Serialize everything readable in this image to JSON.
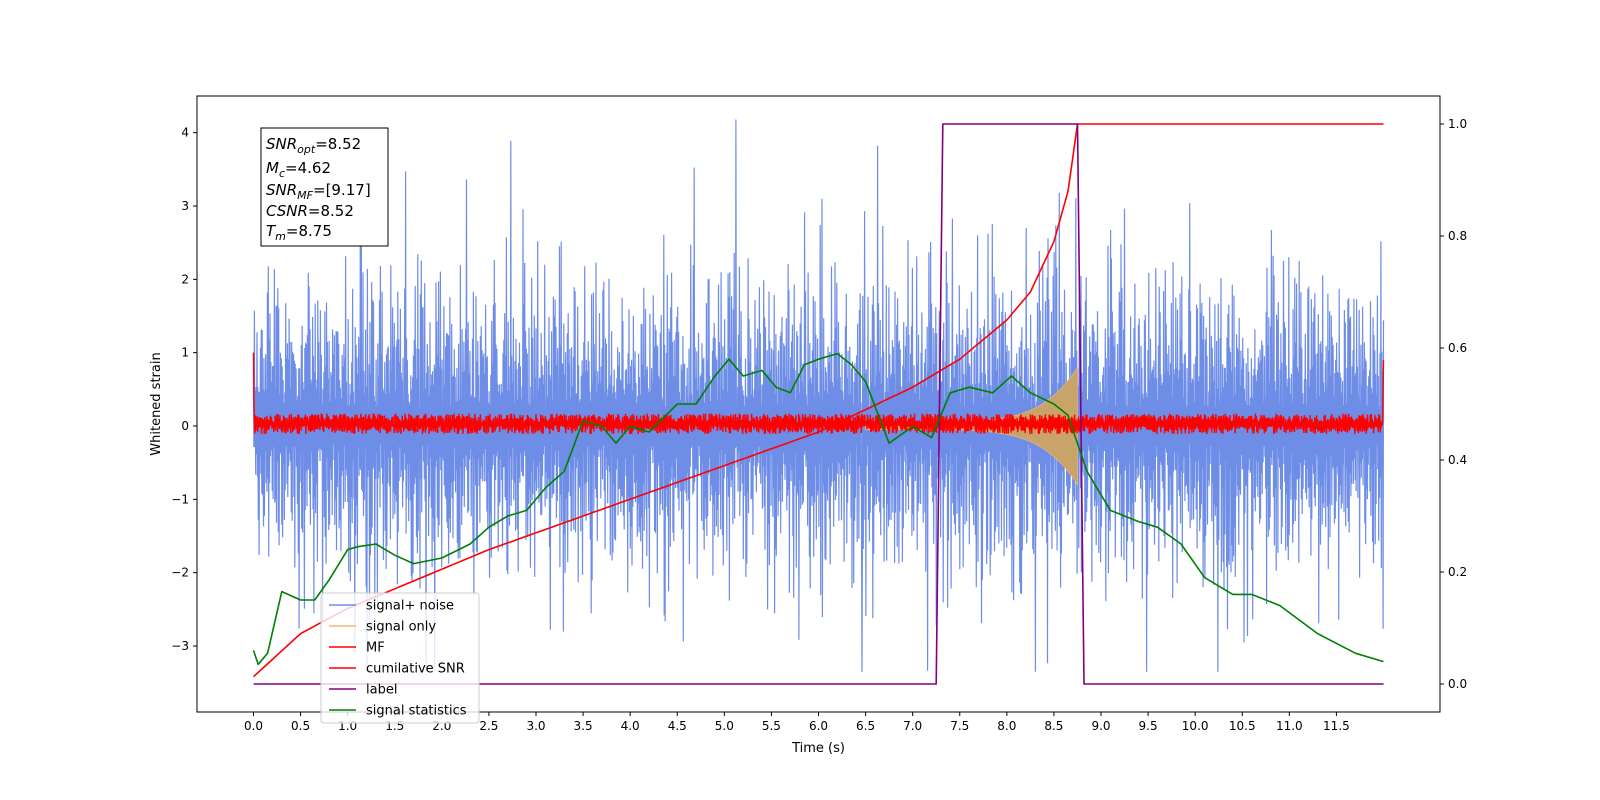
{
  "chart_data": {
    "type": "line",
    "xlabel": "Time (s)",
    "ylabel": "Whitened strain",
    "xlim": [
      -0.6,
      12.6
    ],
    "ylim": [
      -3.9,
      4.5
    ],
    "y2lim": [
      -0.05,
      1.05
    ],
    "x_ticks": [
      "0.0",
      "0.5",
      "1.0",
      "1.5",
      "2.0",
      "2.5",
      "3.0",
      "3.5",
      "4.0",
      "4.5",
      "5.0",
      "5.5",
      "6.0",
      "6.5",
      "7.0",
      "7.5",
      "8.0",
      "8.5",
      "9.0",
      "9.5",
      "10.0",
      "10.5",
      "11.0",
      "11.5"
    ],
    "y_ticks": [
      "−3",
      "−2",
      "−1",
      "0",
      "1",
      "2",
      "3",
      "4"
    ],
    "y2_ticks": [
      "0.0",
      "0.2",
      "0.4",
      "0.6",
      "0.8",
      "1.0"
    ],
    "grid": false,
    "legend_position": "lower-left",
    "colors": {
      "signal_noise": "#6e8de6",
      "signal_only": "#f5b97a",
      "signal_only_fill": "#c9a46a",
      "mf": "#ff0000",
      "cumulative_snr": "#ff0000",
      "label": "#800080",
      "signal_statistics": "#008000"
    },
    "annotation": {
      "snr_opt": "8.52",
      "mc": "4.62",
      "snr_mf": "[9.17]",
      "csnr": "8.52",
      "tm": "8.75"
    },
    "series": [
      {
        "name": "signal+ noise",
        "axis": "left",
        "kind": "noise",
        "t_range": [
          0.0,
          12.0
        ],
        "envelope_upper": 2.2,
        "envelope_lower": -2.2,
        "max_spike": 4.18,
        "min_spike": -3.35
      },
      {
        "name": "signal only",
        "axis": "left",
        "kind": "chirp",
        "t_range": [
          6.5,
          8.75
        ],
        "peak_amplitude": 0.75
      },
      {
        "name": "MF",
        "axis": "left",
        "kind": "mf",
        "t_range": [
          0.0,
          12.0
        ],
        "band": [
          -0.12,
          0.22
        ]
      },
      {
        "name": "cumilative SNR",
        "axis": "right",
        "points": [
          [
            0.0,
            0.013
          ],
          [
            0.5,
            0.09
          ],
          [
            1.0,
            0.135
          ],
          [
            1.5,
            0.17
          ],
          [
            2.0,
            0.205
          ],
          [
            2.5,
            0.24
          ],
          [
            3.0,
            0.27
          ],
          [
            3.5,
            0.3
          ],
          [
            4.0,
            0.33
          ],
          [
            4.5,
            0.36
          ],
          [
            5.0,
            0.39
          ],
          [
            5.5,
            0.42
          ],
          [
            6.0,
            0.45
          ],
          [
            6.5,
            0.49
          ],
          [
            7.0,
            0.53
          ],
          [
            7.5,
            0.58
          ],
          [
            8.0,
            0.65
          ],
          [
            8.25,
            0.7
          ],
          [
            8.5,
            0.79
          ],
          [
            8.65,
            0.88
          ],
          [
            8.75,
            1.0
          ],
          [
            12.0,
            1.0
          ]
        ]
      },
      {
        "name": "label",
        "axis": "right",
        "points": [
          [
            0.0,
            0.0
          ],
          [
            7.25,
            0.0
          ],
          [
            7.32,
            1.0
          ],
          [
            8.75,
            1.0
          ],
          [
            8.82,
            0.0
          ],
          [
            12.0,
            0.0
          ]
        ]
      },
      {
        "name": "signal statistics",
        "axis": "right",
        "points": [
          [
            0.0,
            0.06
          ],
          [
            0.05,
            0.035
          ],
          [
            0.15,
            0.055
          ],
          [
            0.3,
            0.165
          ],
          [
            0.5,
            0.15
          ],
          [
            0.65,
            0.15
          ],
          [
            0.8,
            0.185
          ],
          [
            1.0,
            0.24
          ],
          [
            1.1,
            0.245
          ],
          [
            1.3,
            0.25
          ],
          [
            1.5,
            0.23
          ],
          [
            1.7,
            0.215
          ],
          [
            2.0,
            0.225
          ],
          [
            2.3,
            0.25
          ],
          [
            2.5,
            0.28
          ],
          [
            2.7,
            0.3
          ],
          [
            2.9,
            0.31
          ],
          [
            3.1,
            0.35
          ],
          [
            3.3,
            0.38
          ],
          [
            3.5,
            0.47
          ],
          [
            3.7,
            0.46
          ],
          [
            3.85,
            0.43
          ],
          [
            4.0,
            0.46
          ],
          [
            4.2,
            0.45
          ],
          [
            4.5,
            0.5
          ],
          [
            4.7,
            0.5
          ],
          [
            4.9,
            0.55
          ],
          [
            5.05,
            0.58
          ],
          [
            5.2,
            0.55
          ],
          [
            5.4,
            0.56
          ],
          [
            5.55,
            0.53
          ],
          [
            5.7,
            0.52
          ],
          [
            5.85,
            0.57
          ],
          [
            6.0,
            0.58
          ],
          [
            6.2,
            0.59
          ],
          [
            6.35,
            0.57
          ],
          [
            6.5,
            0.54
          ],
          [
            6.75,
            0.43
          ],
          [
            7.0,
            0.46
          ],
          [
            7.2,
            0.44
          ],
          [
            7.4,
            0.52
          ],
          [
            7.6,
            0.53
          ],
          [
            7.85,
            0.52
          ],
          [
            8.05,
            0.55
          ],
          [
            8.25,
            0.52
          ],
          [
            8.5,
            0.5
          ],
          [
            8.65,
            0.48
          ],
          [
            8.85,
            0.38
          ],
          [
            9.1,
            0.31
          ],
          [
            9.4,
            0.29
          ],
          [
            9.6,
            0.28
          ],
          [
            9.85,
            0.25
          ],
          [
            10.1,
            0.19
          ],
          [
            10.4,
            0.16
          ],
          [
            10.6,
            0.16
          ],
          [
            10.9,
            0.14
          ],
          [
            11.3,
            0.09
          ],
          [
            11.7,
            0.055
          ],
          [
            12.0,
            0.04
          ]
        ]
      }
    ]
  }
}
